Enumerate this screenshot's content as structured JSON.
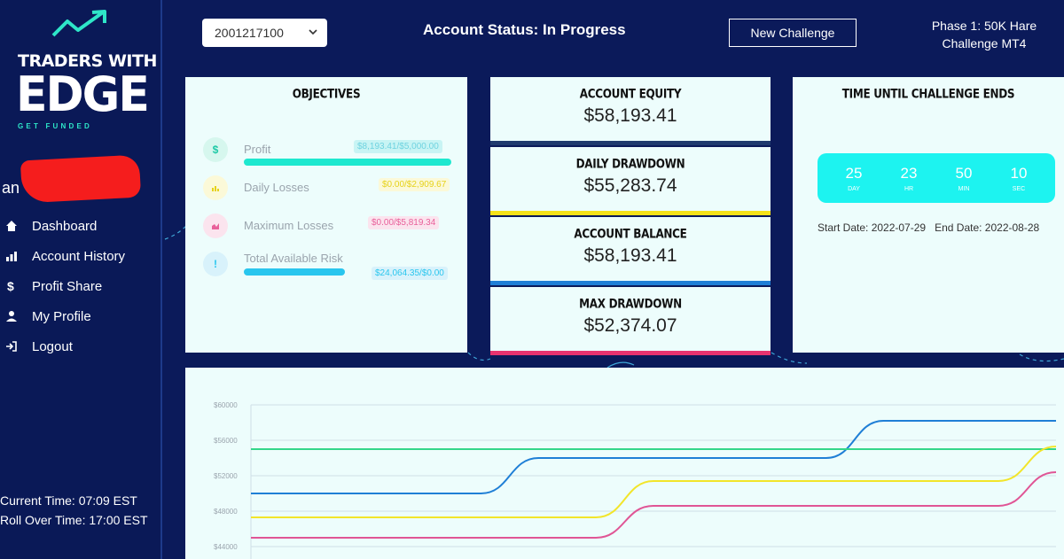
{
  "brand": {
    "line1": "TRADERS WITH",
    "line2": "EDGE",
    "tagline": "GET FUNDED",
    "accent_color": "#2ee6c8"
  },
  "user": {
    "name_visible": "an"
  },
  "sidebar": {
    "items": [
      {
        "label": "Dashboard",
        "icon": "home-icon"
      },
      {
        "label": "Account History",
        "icon": "bar-chart-icon"
      },
      {
        "label": "Profit Share",
        "icon": "dollar-icon"
      },
      {
        "label": "My Profile",
        "icon": "user-icon"
      },
      {
        "label": "Logout",
        "icon": "logout-icon"
      }
    ],
    "current_time": "Current Time: 07:09 EST",
    "rollover_time": "Roll Over Time: 17:00 EST"
  },
  "header": {
    "account_select": "2001217100",
    "status": "Account Status: In Progress",
    "new_challenge": "New Challenge",
    "phase_line1": "Phase 1: 50K Hare",
    "phase_line2": "Challenge MT4"
  },
  "objectives": {
    "title": "OBJECTIVES",
    "items": [
      {
        "label": "Profit",
        "value": "$8,193.41/$5,000.00",
        "icon": "dollar-icon",
        "progress": 1.0,
        "color": "#1ee8cf"
      },
      {
        "label": "Daily Losses",
        "value": "$0.00/$2,909.67",
        "icon": "bar-chart-icon",
        "progress": 0,
        "color": "#f0e020"
      },
      {
        "label": "Maximum Losses",
        "value": "$0.00/$5,819.34",
        "icon": "area-chart-icon",
        "progress": 0,
        "color": "#e8609a"
      },
      {
        "label": "Total Available Risk",
        "value": "$24,064.35/$0.00",
        "icon": "exclamation-icon",
        "progress": 1.0,
        "color": "#29c6ee"
      }
    ]
  },
  "metrics": [
    {
      "title": "ACCOUNT EQUITY",
      "value": "$58,193.41",
      "color": "#1f3a6e"
    },
    {
      "title": "DAILY DRAWDOWN",
      "value": "$55,283.74",
      "color": "#f5e21a"
    },
    {
      "title": "ACCOUNT BALANCE",
      "value": "$58,193.41",
      "color": "#1f7fd6"
    },
    {
      "title": "MAX DRAWDOWN",
      "value": "$52,374.07",
      "color": "#e8336f"
    }
  ],
  "timer": {
    "title": "TIME UNTIL CHALLENGE ENDS",
    "days": "25",
    "days_label": "DAY",
    "hours": "23",
    "hours_label": "HR",
    "minutes": "50",
    "minutes_label": "MIN",
    "seconds": "10",
    "seconds_label": "SEC",
    "start_date": "Start Date: 2022-07-29",
    "end_date": "End Date: 2022-08-28"
  },
  "chart_data": {
    "type": "line",
    "yticks": [
      "$60000",
      "$56000",
      "$52000",
      "$48000",
      "$44000"
    ],
    "ylim": [
      44000,
      60000
    ],
    "grid": true,
    "x": [
      0,
      1,
      2,
      3,
      4,
      5,
      6,
      7,
      8,
      9,
      10,
      11,
      12,
      13,
      14
    ],
    "series": [
      {
        "color": "#1f7fd6",
        "values": [
          50000,
          50000,
          50000,
          50000,
          50000,
          54000,
          54000,
          54000,
          54000,
          54000,
          54000,
          58200,
          58200,
          58200,
          58200
        ]
      },
      {
        "color": "#33d68a",
        "values": [
          55000,
          55000,
          55000,
          55000,
          55000,
          55000,
          55000,
          55000,
          55000,
          55000,
          55000,
          55000,
          55000,
          55000,
          55000
        ]
      },
      {
        "color": "#f2e52a",
        "values": [
          47300,
          47300,
          47300,
          47300,
          47300,
          47300,
          47300,
          51400,
          51400,
          51400,
          51400,
          51400,
          51400,
          51400,
          55300
        ]
      },
      {
        "color": "#e05595",
        "values": [
          45000,
          45000,
          45000,
          45000,
          45000,
          45000,
          45000,
          48600,
          48600,
          48600,
          48600,
          48600,
          48600,
          48600,
          52400
        ]
      }
    ]
  }
}
